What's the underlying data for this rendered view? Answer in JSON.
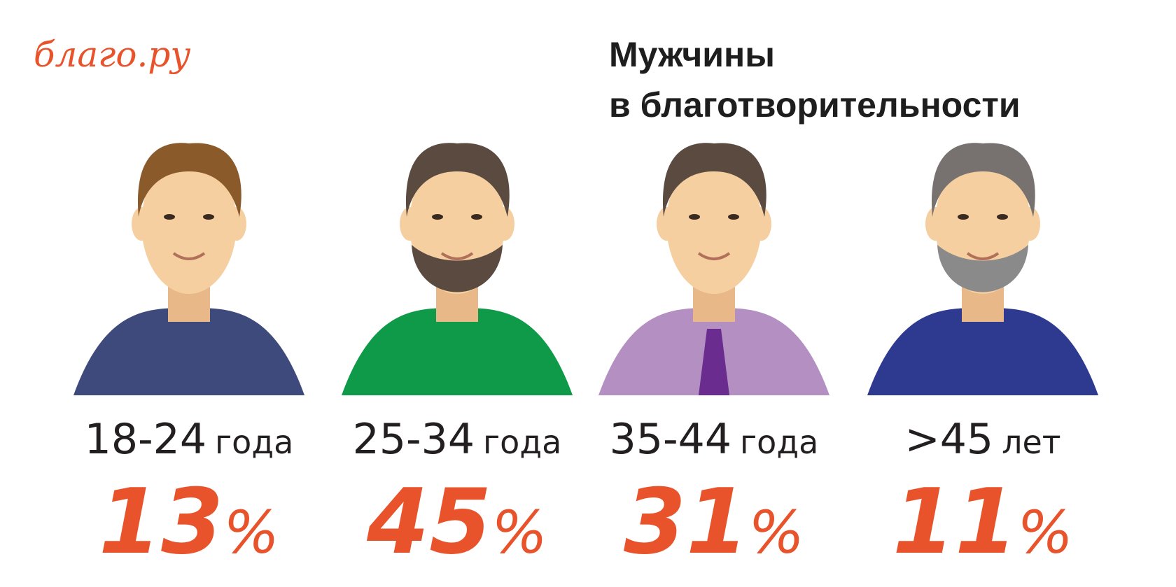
{
  "logo": "благо.ру",
  "title": [
    "Мужчины",
    "в благотворительности"
  ],
  "groups": [
    {
      "age": "18-24",
      "age_unit": "года",
      "value": "13",
      "unit": "%"
    },
    {
      "age": "25-34",
      "age_unit": "года",
      "value": "45",
      "unit": "%"
    },
    {
      "age": "35-44",
      "age_unit": "года",
      "value": "31",
      "unit": "%"
    },
    {
      "age": ">45",
      "age_unit": "лет",
      "value": "11",
      "unit": "%"
    }
  ]
}
